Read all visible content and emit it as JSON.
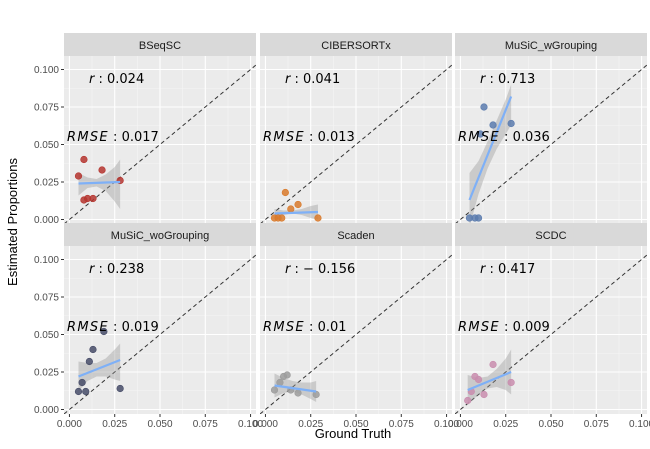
{
  "chart_data": {
    "type": "scatter",
    "xlabel": "Ground Truth",
    "ylabel": "Estimated Proportions",
    "xlim": [
      -0.003,
      0.103
    ],
    "ylim": [
      -0.003,
      0.109
    ],
    "x_ticks": [
      0.0,
      0.025,
      0.05,
      0.075,
      0.1
    ],
    "x_tick_labels": [
      "0.000",
      "0.025",
      "0.050",
      "0.075",
      "0.100"
    ],
    "y_ticks": [
      0.0,
      0.025,
      0.05,
      0.075,
      0.1
    ],
    "y_tick_labels": [
      "0.000",
      "0.025",
      "0.050",
      "0.075",
      "0.100"
    ],
    "grid": true,
    "identity_line": true,
    "panels": [
      {
        "name": "BSeqSC",
        "color": "#B5352F",
        "r_label": "r",
        "r_value": ": 0.024",
        "rmse_label": "RMSE",
        "rmse_value": ": 0.017",
        "points": [
          [
            0.005,
            0.029
          ],
          [
            0.008,
            0.013
          ],
          [
            0.01,
            0.014
          ],
          [
            0.013,
            0.014
          ],
          [
            0.018,
            0.033
          ],
          [
            0.028,
            0.026
          ],
          [
            0.008,
            0.04
          ]
        ],
        "fit": [
          [
            0.005,
            0.024
          ],
          [
            0.028,
            0.025
          ]
        ],
        "band": [
          [
            0.005,
            0.031,
            0.016
          ],
          [
            0.01,
            0.028,
            0.021
          ],
          [
            0.015,
            0.027,
            0.022
          ],
          [
            0.02,
            0.03,
            0.019
          ],
          [
            0.025,
            0.035,
            0.012
          ],
          [
            0.028,
            0.04,
            0.007
          ]
        ]
      },
      {
        "name": "CIBERSORTx",
        "color": "#D97A2B",
        "r_label": "r",
        "r_value": ": 0.041",
        "rmse_label": "RMSE",
        "rmse_value": ": 0.013",
        "points": [
          [
            0.005,
            0.001
          ],
          [
            0.007,
            0.001
          ],
          [
            0.009,
            0.001
          ],
          [
            0.011,
            0.018
          ],
          [
            0.014,
            0.007
          ],
          [
            0.018,
            0.01
          ],
          [
            0.029,
            0.001
          ]
        ],
        "fit": [
          [
            0.005,
            0.004
          ],
          [
            0.029,
            0.005
          ]
        ],
        "band": [
          [
            0.005,
            0.007,
            0.001
          ],
          [
            0.01,
            0.006,
            0.003
          ],
          [
            0.015,
            0.006,
            0.004
          ],
          [
            0.02,
            0.007,
            0.003
          ],
          [
            0.025,
            0.009,
            0.001
          ],
          [
            0.029,
            0.01,
            0.0
          ]
        ]
      },
      {
        "name": "MuSiC_wGrouping",
        "color": "#5B7BAE",
        "r_label": "r",
        "r_value": ": 0.713",
        "rmse_label": "RMSE",
        "rmse_value": ": 0.036",
        "points": [
          [
            0.005,
            0.001
          ],
          [
            0.008,
            0.001
          ],
          [
            0.01,
            0.001
          ],
          [
            0.011,
            0.057
          ],
          [
            0.013,
            0.075
          ],
          [
            0.018,
            0.063
          ],
          [
            0.028,
            0.064
          ]
        ],
        "fit": [
          [
            0.005,
            0.013
          ],
          [
            0.028,
            0.082
          ]
        ],
        "band": [
          [
            0.005,
            0.031,
            -0.005
          ],
          [
            0.01,
            0.039,
            0.017
          ],
          [
            0.015,
            0.052,
            0.034
          ],
          [
            0.02,
            0.066,
            0.047
          ],
          [
            0.025,
            0.08,
            0.057
          ],
          [
            0.028,
            0.09,
            0.063
          ]
        ]
      },
      {
        "name": "MuSiC_woGrouping",
        "color": "#474C68",
        "r_label": "r",
        "r_value": ": 0.238",
        "rmse_label": "RMSE",
        "rmse_value": ": 0.019",
        "points": [
          [
            0.005,
            0.012
          ],
          [
            0.007,
            0.018
          ],
          [
            0.009,
            0.012
          ],
          [
            0.011,
            0.032
          ],
          [
            0.013,
            0.04
          ],
          [
            0.019,
            0.052
          ],
          [
            0.028,
            0.014
          ]
        ],
        "fit": [
          [
            0.005,
            0.022
          ],
          [
            0.028,
            0.033
          ]
        ],
        "band": [
          [
            0.005,
            0.032,
            0.012
          ],
          [
            0.01,
            0.031,
            0.019
          ],
          [
            0.015,
            0.031,
            0.022
          ],
          [
            0.02,
            0.034,
            0.022
          ],
          [
            0.025,
            0.04,
            0.02
          ],
          [
            0.028,
            0.044,
            0.019
          ]
        ]
      },
      {
        "name": "Scaden",
        "color": "#9C9C9C",
        "r_label": "r",
        "r_value": ": − 0.156",
        "rmse_label": "RMSE",
        "rmse_value": ": 0.01",
        "points": [
          [
            0.005,
            0.013
          ],
          [
            0.008,
            0.018
          ],
          [
            0.01,
            0.022
          ],
          [
            0.012,
            0.023
          ],
          [
            0.014,
            0.013
          ],
          [
            0.018,
            0.011
          ],
          [
            0.028,
            0.01
          ]
        ],
        "fit": [
          [
            0.005,
            0.016
          ],
          [
            0.028,
            0.012
          ]
        ],
        "band": [
          [
            0.005,
            0.024,
            0.008
          ],
          [
            0.01,
            0.021,
            0.011
          ],
          [
            0.015,
            0.019,
            0.012
          ],
          [
            0.02,
            0.018,
            0.01
          ],
          [
            0.025,
            0.018,
            0.007
          ],
          [
            0.028,
            0.019,
            0.005
          ]
        ]
      },
      {
        "name": "SCDC",
        "color": "#C98DAE",
        "r_label": "r",
        "r_value": ": 0.417",
        "rmse_label": "RMSE",
        "rmse_value": ": 0.009",
        "points": [
          [
            0.004,
            0.006
          ],
          [
            0.006,
            0.012
          ],
          [
            0.008,
            0.022
          ],
          [
            0.01,
            0.02
          ],
          [
            0.013,
            0.01
          ],
          [
            0.018,
            0.03
          ],
          [
            0.028,
            0.018
          ]
        ],
        "fit": [
          [
            0.004,
            0.013
          ],
          [
            0.028,
            0.025
          ]
        ],
        "band": [
          [
            0.004,
            0.023,
            0.003
          ],
          [
            0.01,
            0.021,
            0.01
          ],
          [
            0.015,
            0.022,
            0.014
          ],
          [
            0.02,
            0.027,
            0.015
          ],
          [
            0.025,
            0.034,
            0.013
          ],
          [
            0.028,
            0.04,
            0.01
          ]
        ]
      }
    ]
  }
}
